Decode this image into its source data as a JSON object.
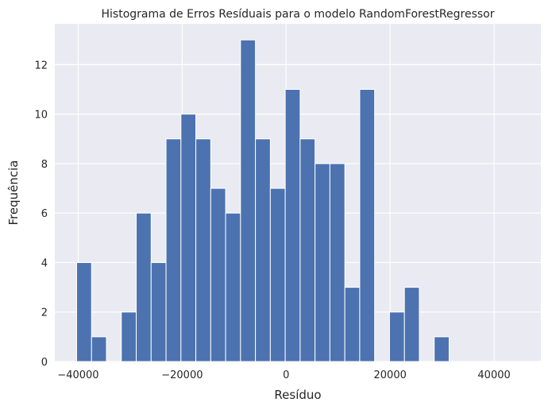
{
  "chart_data": {
    "type": "bar",
    "title": "Histograma de Erros Resíduais para o modelo RandomForestRegressor",
    "xlabel": "Resíduo",
    "ylabel": "Frequência",
    "xlim": [
      -44500,
      49000
    ],
    "ylim": [
      0,
      13.65
    ],
    "xticks": [
      -40000,
      -20000,
      0,
      20000,
      40000
    ],
    "xtick_labels": [
      "−40000",
      "−20000",
      "0",
      "20000",
      "40000"
    ],
    "yticks": [
      0,
      2,
      4,
      6,
      8,
      10,
      12
    ],
    "ytick_labels": [
      "0",
      "2",
      "4",
      "6",
      "8",
      "10",
      "12"
    ],
    "grid": true,
    "bin_start": -40300,
    "bin_width": 2866,
    "values": [
      4,
      1,
      0,
      2,
      6,
      4,
      9,
      10,
      9,
      7,
      6,
      13,
      9,
      7,
      11,
      9,
      8,
      8,
      3,
      11,
      0,
      2,
      3,
      0,
      1
    ],
    "colors": {
      "bar": "#4c72b0",
      "plot_bg": "#eaeaf2",
      "grid": "#ffffff",
      "text": "#262626"
    }
  }
}
